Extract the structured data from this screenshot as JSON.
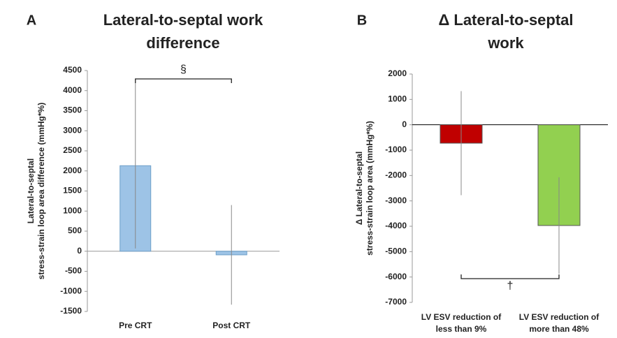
{
  "chart_data": [
    {
      "type": "bar",
      "panel": "A",
      "title": "Lateral-to-septal work difference",
      "ylabel": [
        "Lateral-to-septal",
        "stress-strain loop area difference (mmHg*%)"
      ],
      "categories": [
        "Pre CRT",
        "Post CRT"
      ],
      "series": [
        {
          "colors": [
            "#9dc3e6",
            "#9dc3e6"
          ],
          "values": [
            2130,
            -90
          ],
          "errors": [
            2060,
            1240
          ]
        }
      ],
      "ylim": [
        -1500,
        4500
      ],
      "yticks": [
        -1500,
        -1000,
        -500,
        0,
        500,
        1000,
        1500,
        2000,
        2500,
        3000,
        3500,
        4000,
        4500
      ],
      "annotation": "§"
    },
    {
      "type": "bar",
      "panel": "B",
      "title": "Δ Lateral-to-septal work",
      "ylabel": [
        "Δ Lateral-to-septal",
        "stress-strain loop area (mmHg*%)"
      ],
      "categories": [
        "LV ESV reduction of less than 9%",
        "LV ESV reduction of more than 48%"
      ],
      "series": [
        {
          "colors": [
            "#c00000",
            "#92d050"
          ],
          "values": [
            -725,
            -3970
          ],
          "errors": [
            2050,
            1900
          ]
        }
      ],
      "ylim": [
        -7000,
        2000
      ],
      "yticks": [
        -7000,
        -6000,
        -5000,
        -4000,
        -3000,
        -2000,
        -1000,
        0,
        1000,
        2000
      ],
      "annotation": "†"
    }
  ]
}
